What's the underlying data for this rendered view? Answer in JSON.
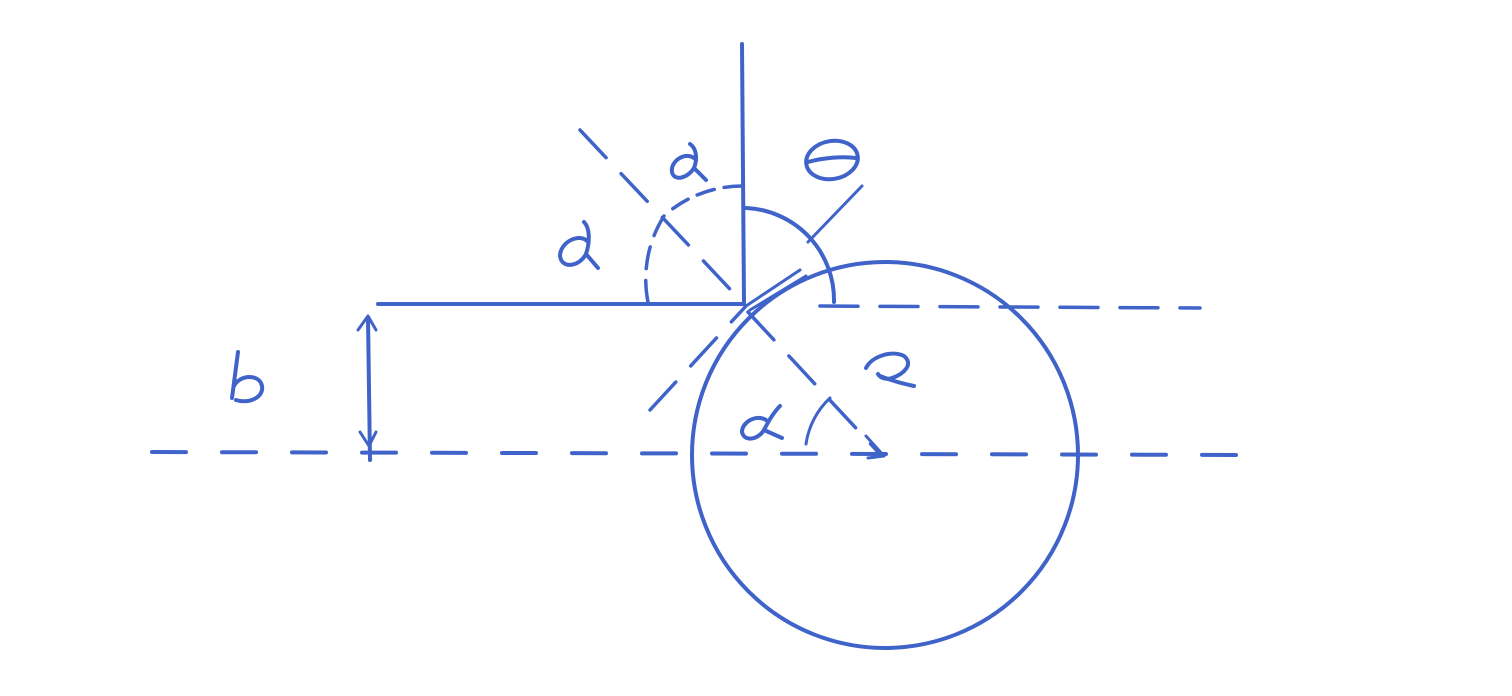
{
  "diagram": {
    "ink_color": "#3f63c9",
    "labels": {
      "theta": "θ",
      "alpha_top": "α",
      "alpha_left": "α",
      "alpha_bottom": "α",
      "radius": "R",
      "offset": "b"
    }
  }
}
